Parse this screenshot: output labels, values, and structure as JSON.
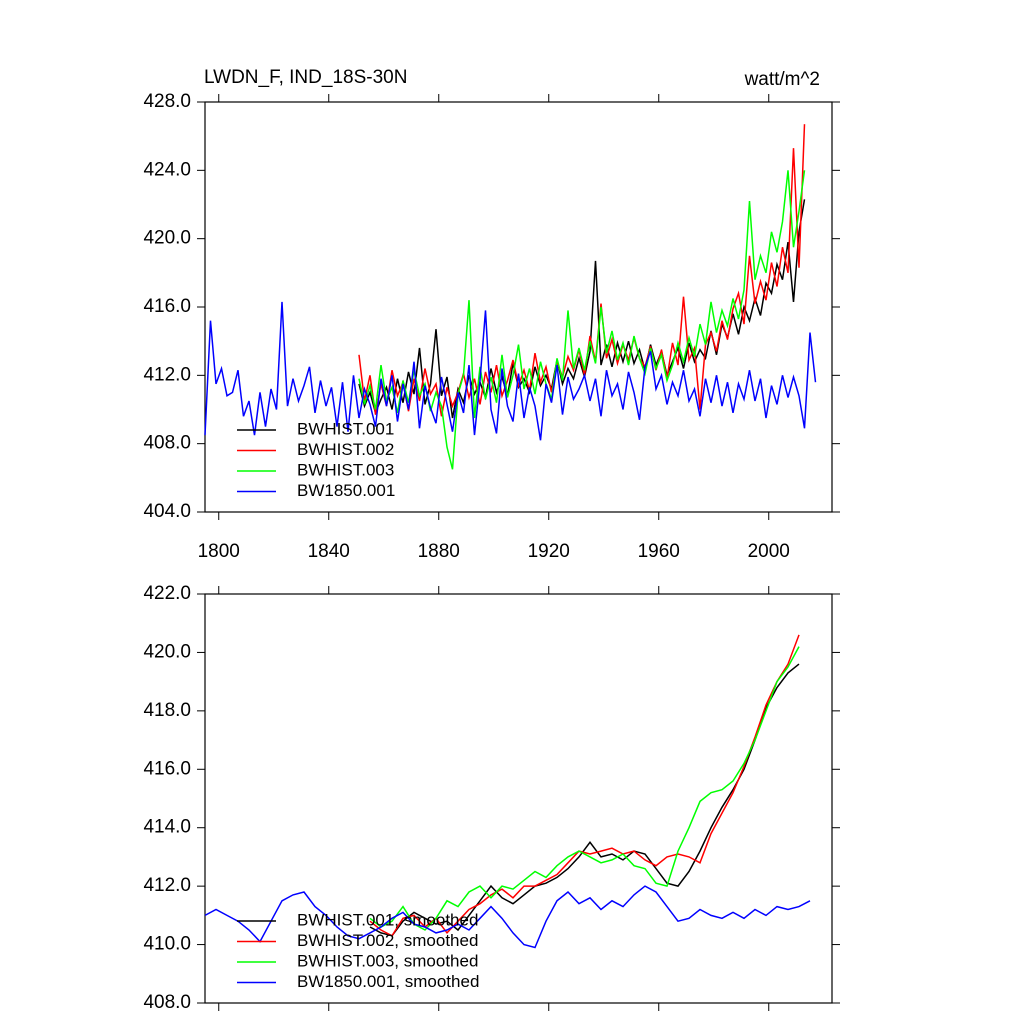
{
  "chart_data": [
    {
      "type": "line",
      "title": "LWDN_F, IND_18S-30N",
      "units": "watt/m^2",
      "xlim": [
        1795,
        2023
      ],
      "xticks": [
        1800,
        1840,
        1880,
        1920,
        1960,
        2000
      ],
      "ylim": [
        404,
        428
      ],
      "yticks": [
        {
          "value": 404,
          "label": "404.0"
        },
        {
          "value": 408,
          "label": "408.0"
        },
        {
          "value": 412,
          "label": "412.0"
        },
        {
          "value": 416,
          "label": "416.0"
        },
        {
          "value": 420,
          "label": "420.0"
        },
        {
          "value": 424,
          "label": "424.0"
        },
        {
          "value": 428,
          "label": "428.0"
        }
      ],
      "x": [
        1795,
        1797,
        1799,
        1801,
        1803,
        1805,
        1807,
        1809,
        1811,
        1813,
        1815,
        1817,
        1819,
        1821,
        1823,
        1825,
        1827,
        1829,
        1831,
        1833,
        1835,
        1837,
        1839,
        1841,
        1843,
        1845,
        1847,
        1849,
        1851,
        1853,
        1855,
        1857,
        1859,
        1861,
        1863,
        1865,
        1867,
        1869,
        1871,
        1873,
        1875,
        1877,
        1879,
        1881,
        1883,
        1885,
        1887,
        1889,
        1891,
        1893,
        1895,
        1897,
        1899,
        1901,
        1903,
        1905,
        1907,
        1909,
        1911,
        1913,
        1915,
        1917,
        1919,
        1921,
        1923,
        1925,
        1927,
        1929,
        1931,
        1933,
        1935,
        1937,
        1939,
        1941,
        1943,
        1945,
        1947,
        1949,
        1951,
        1953,
        1955,
        1957,
        1959,
        1961,
        1963,
        1965,
        1967,
        1969,
        1971,
        1973,
        1975,
        1977,
        1979,
        1981,
        1983,
        1985,
        1987,
        1989,
        1991,
        1993,
        1995,
        1997,
        1999,
        2001,
        2003,
        2005,
        2007,
        2009,
        2011,
        2013,
        2015,
        2017
      ],
      "series": [
        {
          "name": "BWHIST.001",
          "color": "#000000",
          "values": [
            null,
            null,
            null,
            null,
            null,
            null,
            null,
            null,
            null,
            null,
            null,
            null,
            null,
            null,
            null,
            null,
            null,
            null,
            null,
            null,
            null,
            null,
            null,
            null,
            null,
            null,
            null,
            null,
            411.5,
            410.2,
            411.0,
            409.8,
            410.6,
            411.3,
            410.0,
            411.8,
            410.4,
            412.2,
            410.9,
            413.6,
            410.3,
            411.5,
            414.7,
            410.8,
            411.9,
            409.5,
            411.2,
            410.4,
            412.0,
            410.9,
            411.6,
            410.7,
            412.4,
            411.0,
            411.9,
            410.8,
            412.7,
            411.3,
            411.8,
            411.0,
            412.5,
            411.4,
            412.0,
            411.2,
            412.9,
            411.5,
            412.4,
            411.8,
            413.0,
            411.9,
            413.4,
            418.7,
            412.6,
            413.8,
            412.5,
            413.9,
            412.8,
            414.0,
            412.7,
            413.5,
            412.3,
            413.8,
            412.6,
            413.4,
            412.0,
            412.8,
            413.6,
            412.4,
            413.9,
            412.8,
            413.5,
            413.0,
            414.6,
            413.2,
            415.0,
            414.2,
            415.6,
            414.4,
            416.0,
            415.2,
            416.5,
            415.5,
            417.4,
            416.8,
            418.5,
            417.6,
            419.8,
            416.3,
            420.4,
            422.3,
            null,
            null
          ]
        },
        {
          "name": "BWHIST.002",
          "color": "#ff0000",
          "values": [
            null,
            null,
            null,
            null,
            null,
            null,
            null,
            null,
            null,
            null,
            null,
            null,
            null,
            null,
            null,
            null,
            null,
            null,
            null,
            null,
            null,
            null,
            null,
            null,
            null,
            null,
            null,
            null,
            413.2,
            410.5,
            412.0,
            409.7,
            411.5,
            410.2,
            412.3,
            410.8,
            411.6,
            409.9,
            411.8,
            410.5,
            412.4,
            410.9,
            411.5,
            409.6,
            411.3,
            410.2,
            411.0,
            412.1,
            410.7,
            411.8,
            410.3,
            412.2,
            411.0,
            412.6,
            410.8,
            411.7,
            412.9,
            411.4,
            412.3,
            411.1,
            413.3,
            411.6,
            412.5,
            411.0,
            412.8,
            411.9,
            413.1,
            412.3,
            413.5,
            412.0,
            414.3,
            412.8,
            416.2,
            413.0,
            414.1,
            412.7,
            413.8,
            412.9,
            414.2,
            413.0,
            412.5,
            413.7,
            412.3,
            413.5,
            411.8,
            413.9,
            412.6,
            416.6,
            412.9,
            413.6,
            410.0,
            413.8,
            414.5,
            413.4,
            415.2,
            414.1,
            415.9,
            416.8,
            415.0,
            419.0,
            416.2,
            417.5,
            416.4,
            418.6,
            417.2,
            419.5,
            418.0,
            425.3,
            418.3,
            426.7,
            null,
            null
          ]
        },
        {
          "name": "BWHIST.003",
          "color": "#00ff00",
          "values": [
            null,
            null,
            null,
            null,
            null,
            null,
            null,
            null,
            null,
            null,
            null,
            null,
            null,
            null,
            null,
            null,
            null,
            null,
            null,
            null,
            null,
            null,
            null,
            null,
            null,
            null,
            null,
            null,
            411.8,
            410.3,
            411.4,
            410.0,
            412.6,
            410.5,
            411.3,
            409.8,
            411.7,
            410.4,
            412.3,
            410.8,
            411.5,
            409.9,
            411.0,
            410.2,
            407.8,
            406.5,
            410.9,
            412.0,
            416.4,
            409.5,
            412.5,
            410.6,
            411.9,
            410.4,
            413.2,
            410.7,
            412.0,
            413.8,
            411.2,
            412.4,
            410.9,
            412.8,
            411.5,
            410.6,
            413.0,
            411.7,
            415.8,
            412.4,
            413.6,
            412.3,
            414.0,
            412.7,
            416.0,
            413.3,
            414.6,
            412.9,
            413.9,
            412.6,
            414.3,
            413.0,
            412.1,
            413.6,
            412.4,
            413.2,
            411.7,
            412.6,
            413.9,
            412.8,
            414.2,
            413.1,
            415.0,
            413.8,
            416.3,
            414.5,
            415.8,
            414.9,
            416.5,
            415.3,
            417.0,
            422.2,
            417.6,
            419.0,
            418.0,
            420.4,
            419.2,
            421.0,
            424.0,
            419.5,
            421.6,
            424.0,
            null,
            null
          ]
        },
        {
          "name": "BW1850.001",
          "color": "#0000ff",
          "values": [
            408.5,
            415.2,
            411.5,
            412.4,
            410.8,
            411.0,
            412.3,
            409.6,
            410.5,
            408.5,
            411.0,
            409.0,
            411.2,
            410.0,
            416.3,
            410.2,
            411.8,
            410.5,
            411.4,
            412.5,
            409.8,
            411.7,
            410.2,
            411.3,
            409.0,
            411.6,
            408.7,
            412.0,
            409.5,
            411.2,
            410.3,
            409.0,
            411.8,
            410.2,
            412.0,
            409.3,
            411.5,
            410.0,
            412.8,
            408.9,
            411.4,
            410.1,
            409.2,
            411.9,
            410.3,
            408.7,
            411.0,
            409.8,
            412.6,
            408.5,
            411.7,
            415.8,
            410.0,
            408.6,
            412.4,
            410.2,
            409.3,
            412.1,
            409.5,
            411.3,
            410.2,
            408.2,
            411.5,
            410.4,
            412.6,
            409.7,
            411.9,
            410.6,
            411.2,
            412.0,
            410.5,
            411.8,
            409.6,
            412.3,
            410.8,
            411.5,
            410.0,
            412.2,
            411.0,
            409.4,
            412.5,
            413.4,
            411.2,
            412.0,
            410.3,
            411.6,
            410.8,
            412.3,
            410.5,
            411.2,
            409.6,
            411.8,
            410.4,
            412.0,
            410.2,
            411.6,
            409.8,
            411.5,
            410.6,
            412.3,
            410.5,
            411.8,
            409.5,
            411.4,
            410.3,
            412.0,
            410.7,
            411.9,
            410.8,
            408.9,
            414.5,
            411.6
          ]
        }
      ]
    },
    {
      "type": "line",
      "xlim": [
        1795,
        2023
      ],
      "xticks": [
        1800,
        1840,
        1880,
        1920,
        1960,
        2000
      ],
      "ylim": [
        408,
        422
      ],
      "yticks": [
        {
          "value": 408,
          "label": "408.0"
        },
        {
          "value": 410,
          "label": "410.0"
        },
        {
          "value": 412,
          "label": "412.0"
        },
        {
          "value": 414,
          "label": "414.0"
        },
        {
          "value": 416,
          "label": "416.0"
        },
        {
          "value": 418,
          "label": "418.0"
        },
        {
          "value": 420,
          "label": "420.0"
        },
        {
          "value": 422,
          "label": "422.0"
        }
      ],
      "x": [
        1795,
        1799,
        1803,
        1807,
        1811,
        1815,
        1819,
        1823,
        1827,
        1831,
        1835,
        1839,
        1843,
        1847,
        1851,
        1855,
        1859,
        1863,
        1867,
        1871,
        1875,
        1879,
        1883,
        1887,
        1891,
        1895,
        1899,
        1903,
        1907,
        1911,
        1915,
        1919,
        1923,
        1927,
        1931,
        1935,
        1939,
        1943,
        1947,
        1951,
        1955,
        1959,
        1963,
        1967,
        1971,
        1975,
        1979,
        1983,
        1987,
        1991,
        1995,
        1999,
        2003,
        2007,
        2011,
        2015
      ],
      "series": [
        {
          "name": "BWHIST.001, smoothed",
          "color": "#000000",
          "values": [
            null,
            null,
            null,
            null,
            null,
            null,
            null,
            null,
            null,
            null,
            null,
            null,
            null,
            null,
            null,
            410.6,
            410.4,
            410.3,
            410.8,
            411.1,
            410.9,
            410.7,
            410.8,
            410.5,
            411.0,
            411.5,
            412.0,
            411.6,
            411.4,
            411.7,
            412.0,
            412.1,
            412.3,
            412.6,
            413.0,
            413.5,
            413.0,
            413.1,
            412.9,
            413.2,
            413.1,
            412.6,
            412.1,
            412.0,
            412.5,
            413.2,
            414.0,
            414.7,
            415.3,
            416.0,
            417.0,
            418.1,
            418.8,
            419.3,
            419.6,
            null
          ]
        },
        {
          "name": "BWHIST.002, smoothed",
          "color": "#ff0000",
          "values": [
            null,
            null,
            null,
            null,
            null,
            null,
            null,
            null,
            null,
            null,
            null,
            null,
            null,
            null,
            null,
            410.8,
            410.5,
            410.3,
            410.9,
            411.0,
            410.6,
            410.9,
            410.4,
            410.8,
            411.2,
            411.4,
            411.7,
            411.9,
            411.6,
            412.0,
            412.0,
            412.2,
            412.4,
            412.8,
            413.2,
            413.1,
            413.2,
            413.3,
            413.1,
            413.2,
            412.9,
            412.7,
            413.0,
            413.1,
            413.0,
            412.8,
            413.8,
            414.5,
            415.2,
            416.1,
            417.1,
            418.2,
            419.0,
            419.6,
            420.6,
            null
          ]
        },
        {
          "name": "BWHIST.003, smoothed",
          "color": "#00ff00",
          "values": [
            null,
            null,
            null,
            null,
            null,
            null,
            null,
            null,
            null,
            null,
            null,
            null,
            null,
            null,
            null,
            410.9,
            410.6,
            410.8,
            411.3,
            410.7,
            410.5,
            410.9,
            411.5,
            411.3,
            411.8,
            412.0,
            411.6,
            412.0,
            411.9,
            412.2,
            412.5,
            412.3,
            412.7,
            413.0,
            413.2,
            413.0,
            412.8,
            412.9,
            413.1,
            412.7,
            412.6,
            412.1,
            412.0,
            413.2,
            414.0,
            414.9,
            415.2,
            415.3,
            415.6,
            416.2,
            417.0,
            418.0,
            419.0,
            419.5,
            420.2,
            null
          ]
        },
        {
          "name": "BW1850.001, smoothed",
          "color": "#0000ff",
          "values": [
            411.0,
            411.2,
            411.0,
            410.8,
            410.5,
            410.1,
            410.8,
            411.5,
            411.7,
            411.8,
            411.3,
            411.0,
            410.6,
            410.3,
            410.2,
            410.4,
            410.6,
            410.9,
            411.1,
            410.7,
            410.6,
            410.4,
            410.5,
            410.7,
            410.5,
            410.9,
            411.3,
            410.9,
            410.4,
            410.0,
            409.9,
            410.8,
            411.5,
            411.8,
            411.4,
            411.6,
            411.2,
            411.5,
            411.3,
            411.7,
            412.0,
            411.8,
            411.3,
            410.8,
            410.9,
            411.2,
            411.0,
            410.9,
            411.1,
            410.9,
            411.2,
            411.0,
            411.3,
            411.2,
            411.3,
            411.5
          ]
        }
      ]
    }
  ]
}
